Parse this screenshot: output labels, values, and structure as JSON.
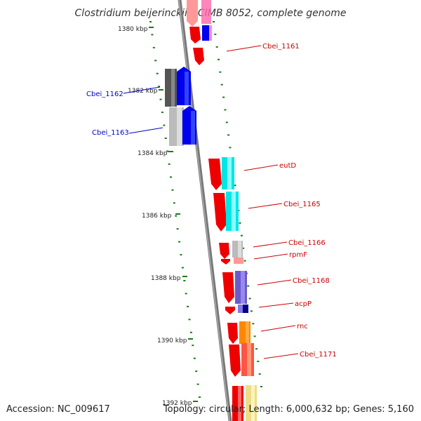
{
  "title": "Clostridium beijerinckii NCIMB 8052, complete genome",
  "footer": {
    "accession": "Accession: NC_009617",
    "summary": "Topology: circular; Length: 6,000,632 bp; Genes: 5,160"
  },
  "scale_labels": [
    "1380 kbp",
    "1382 kbp",
    "1384 kbp",
    "1386 kbp",
    "1388 kbp",
    "1390 kbp",
    "1392 kbp"
  ],
  "gene_labels": {
    "cbei_1161": "Cbei_1161",
    "cbei_1162": "Cbei_1162",
    "cbei_1163": "Cbei_1163",
    "eutd": "eutD",
    "cbei_1165": "Cbei_1165",
    "cbei_1166": "Cbei_1166",
    "rpmf": "rpmF",
    "cbei_1168": "Cbei_1168",
    "acpp": "acpP",
    "rnc": "rnc",
    "cbei_1171": "Cbei_1171"
  },
  "colors": {
    "forward_label": "#cc0000",
    "reverse_label": "#0000cc",
    "backbone": "#888888",
    "ticks": "#1a7a1a"
  }
}
